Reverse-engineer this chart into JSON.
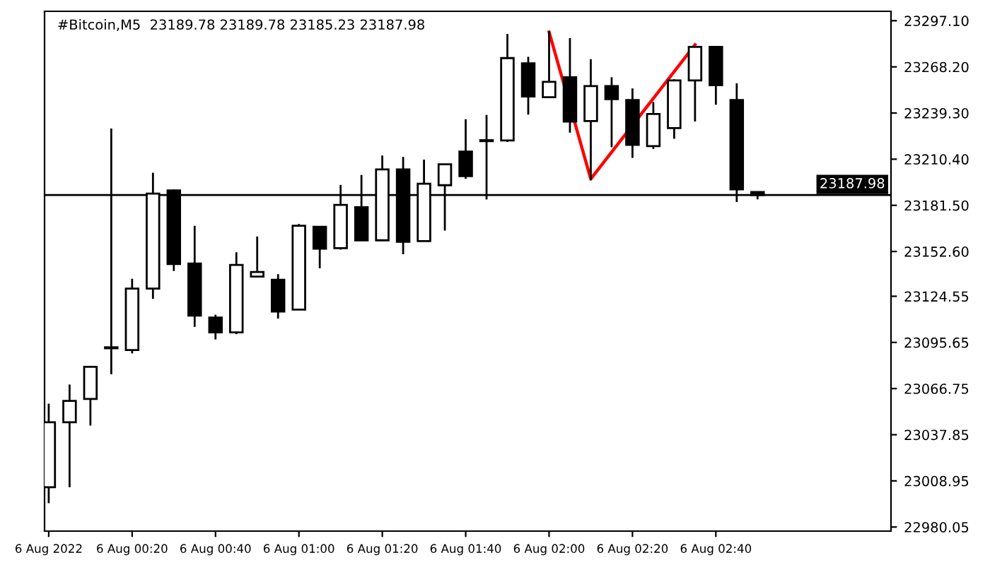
{
  "chart_data": {
    "type": "candlestick",
    "title": "#Bitcoin,M5  23189.78 23189.78 23185.23 23187.98",
    "x": [
      "2022-08-06T00:00",
      "2022-08-06T00:05",
      "2022-08-06T00:10",
      "2022-08-06T00:15",
      "2022-08-06T00:20",
      "2022-08-06T00:25",
      "2022-08-06T00:30",
      "2022-08-06T00:35",
      "2022-08-06T00:40",
      "2022-08-06T00:45",
      "2022-08-06T00:50",
      "2022-08-06T00:55",
      "2022-08-06T01:00",
      "2022-08-06T01:05",
      "2022-08-06T01:10",
      "2022-08-06T01:15",
      "2022-08-06T01:20",
      "2022-08-06T01:25",
      "2022-08-06T01:30",
      "2022-08-06T01:35",
      "2022-08-06T01:40",
      "2022-08-06T01:45",
      "2022-08-06T01:50",
      "2022-08-06T01:55",
      "2022-08-06T02:00",
      "2022-08-06T02:05",
      "2022-08-06T02:10",
      "2022-08-06T02:15",
      "2022-08-06T02:20",
      "2022-08-06T02:25",
      "2022-08-06T02:30",
      "2022-08-06T02:35",
      "2022-08-06T02:40",
      "2022-08-06T02:45",
      "2022-08-06T02:50"
    ],
    "ohlc": [
      [
        23005,
        23057.3,
        22995,
        23045.7
      ],
      [
        23045.7,
        23069.3,
        23005,
        23059.0
      ],
      [
        23060.3,
        23080.4,
        23043.6,
        23080.4
      ],
      [
        23092.0,
        23229.6,
        23075.7,
        23092.5
      ],
      [
        23090.9,
        23135.5,
        23088.8,
        23129.4
      ],
      [
        23129.4,
        23201.9,
        23122.9,
        23188.8
      ],
      [
        23190.8,
        23191.4,
        23140.4,
        23144.7
      ],
      [
        23145.1,
        23168.7,
        23105.4,
        23112.4
      ],
      [
        23111.2,
        23113.0,
        23097.5,
        23101.9
      ],
      [
        23101.9,
        23152.1,
        23100.8,
        23144.2
      ],
      [
        23136.9,
        23162.0,
        23136.9,
        23139.8
      ],
      [
        23134.9,
        23138.4,
        23110.6,
        23115.0
      ],
      [
        23116.2,
        23169.8,
        23116.2,
        23168.7
      ],
      [
        23168.1,
        23168.1,
        23142.1,
        23154.4
      ],
      [
        23154.7,
        23194.3,
        23153.8,
        23181.8
      ],
      [
        23180.3,
        23200.5,
        23159.6,
        23159.6
      ],
      [
        23159.6,
        23212.7,
        23159.6,
        23204.0
      ],
      [
        23204.0,
        23211.8,
        23150.9,
        23158.7
      ],
      [
        23159.1,
        23210.1,
        23159.1,
        23195.0
      ],
      [
        23194.1,
        23207.2,
        23165.7,
        23207.2
      ],
      [
        23215.1,
        23235.4,
        23198.1,
        23199.8
      ],
      [
        23221.7,
        23238.1,
        23185.2,
        23222.2
      ],
      [
        23222.1,
        23288.8,
        23221.2,
        23273.7
      ],
      [
        23270.4,
        23274.5,
        23238.3,
        23249.7
      ],
      [
        23249.2,
        23290.5,
        23249.2,
        23258.8
      ],
      [
        23261.7,
        23286.2,
        23227.0,
        23234.0
      ],
      [
        23234.3,
        23273.0,
        23197.2,
        23256.2
      ],
      [
        23256.2,
        23261.7,
        23217.9,
        23248.0
      ],
      [
        23247.4,
        23254.7,
        23211.2,
        23219.4
      ],
      [
        23218.6,
        23246.2,
        23216.8,
        23238.7
      ],
      [
        23229.9,
        23260.5,
        23223.2,
        23259.7
      ],
      [
        23259.7,
        23281.0,
        23234.0,
        23280.7
      ],
      [
        23280.7,
        23280.7,
        23244.5,
        23256.7
      ],
      [
        23247.4,
        23257.9,
        23183.6,
        23191.5
      ],
      [
        23189.78,
        23189.78,
        23185.23,
        23187.98
      ]
    ],
    "series": [
      {
        "type": "line",
        "color": "#ff0000",
        "x": [
          "2022-08-06T02:00",
          "2022-08-06T02:10",
          "2022-08-06T02:35"
        ],
        "values": [
          23290,
          23198,
          23282
        ]
      }
    ],
    "ref_lines": [
      {
        "axis": "y",
        "value": 23187.98,
        "label": "23187.98",
        "color": "#000000"
      }
    ],
    "xlim": [
      "2022-08-05T23:59",
      "2022-08-06T03:22"
    ],
    "xticks": [
      {
        "value": "2022-08-06T00:00",
        "label": "6 Aug 2022"
      },
      {
        "value": "2022-08-06T00:20",
        "label": "6 Aug 00:20"
      },
      {
        "value": "2022-08-06T00:40",
        "label": "6 Aug 00:40"
      },
      {
        "value": "2022-08-06T01:00",
        "label": "6 Aug 01:00"
      },
      {
        "value": "2022-08-06T01:20",
        "label": "6 Aug 01:20"
      },
      {
        "value": "2022-08-06T01:40",
        "label": "6 Aug 01:40"
      },
      {
        "value": "2022-08-06T02:00",
        "label": "6 Aug 02:00"
      },
      {
        "value": "2022-08-06T02:20",
        "label": "6 Aug 02:20"
      },
      {
        "value": "2022-08-06T02:40",
        "label": "6 Aug 02:40"
      }
    ],
    "ylim": [
      22977.5,
      23303.0
    ],
    "yticks": [
      {
        "value": 23297.1,
        "label": "23297.10"
      },
      {
        "value": 23268.2,
        "label": "23268.20"
      },
      {
        "value": 23239.3,
        "label": "23239.30"
      },
      {
        "value": 23210.4,
        "label": "23210.40"
      },
      {
        "value": 23181.5,
        "label": "23181.50"
      },
      {
        "value": 23152.6,
        "label": "23152.60"
      },
      {
        "value": 23124.55,
        "label": "23124.55"
      },
      {
        "value": 23095.65,
        "label": "23095.65"
      },
      {
        "value": 23066.75,
        "label": "23066.75"
      },
      {
        "value": 23037.85,
        "label": "23037.85"
      },
      {
        "value": 23008.95,
        "label": "23008.95"
      },
      {
        "value": 22980.05,
        "label": "22980.05"
      }
    ],
    "grid": false,
    "legend": false,
    "line_style": "solid",
    "marker": "none"
  }
}
